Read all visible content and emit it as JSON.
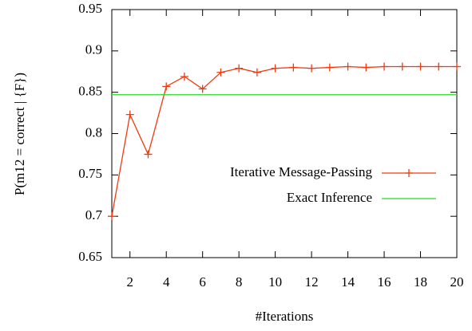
{
  "chart_data": {
    "type": "line",
    "xlabel": "#Iterations",
    "ylabel": "P(m12 = correct | {F})",
    "x": [
      1,
      2,
      3,
      4,
      5,
      6,
      7,
      8,
      9,
      10,
      11,
      12,
      13,
      14,
      15,
      16,
      17,
      18,
      19,
      20
    ],
    "series": [
      {
        "name": "Iterative Message-Passing",
        "color": "#f03a10",
        "marker": "+",
        "values": [
          0.7,
          0.823,
          0.775,
          0.857,
          0.869,
          0.854,
          0.874,
          0.879,
          0.874,
          0.879,
          0.88,
          0.879,
          0.88,
          0.881,
          0.88,
          0.881,
          0.881,
          0.881,
          0.881,
          0.881
        ]
      },
      {
        "name": "Exact Inference",
        "color": "#22dd22",
        "values": [
          0.847,
          0.847,
          0.847,
          0.847,
          0.847,
          0.847,
          0.847,
          0.847,
          0.847,
          0.847,
          0.847,
          0.847,
          0.847,
          0.847,
          0.847,
          0.847,
          0.847,
          0.847,
          0.847,
          0.847
        ]
      }
    ],
    "xlim": [
      1,
      20
    ],
    "xticks": [
      2,
      4,
      6,
      8,
      10,
      12,
      14,
      16,
      18,
      20
    ],
    "ylim": [
      0.65,
      0.95
    ],
    "yticks": [
      0.65,
      0.7,
      0.75,
      0.8,
      0.85,
      0.9,
      0.95
    ],
    "legend": "right"
  }
}
